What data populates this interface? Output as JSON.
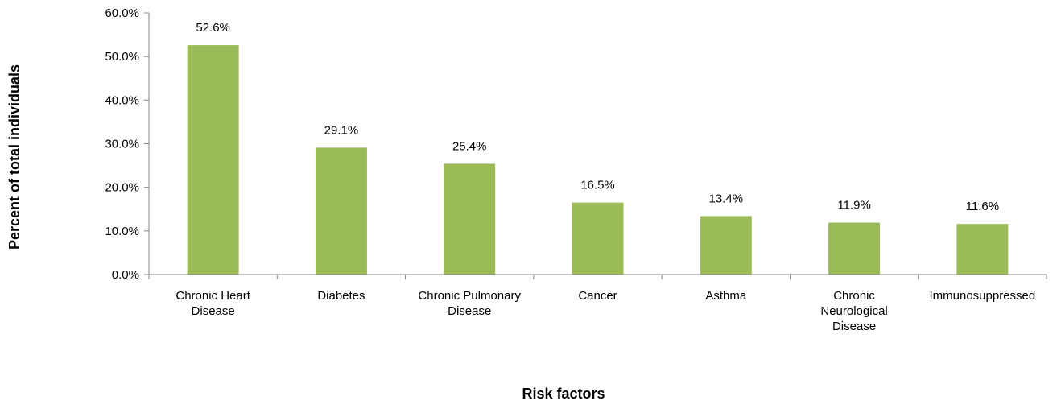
{
  "chart_data": {
    "type": "bar",
    "categories": [
      "Chronic Heart Disease",
      "Diabetes",
      "Chronic Pulmonary Disease",
      "Cancer",
      "Asthma",
      "Chronic Neurological Disease",
      "Immunosuppressed"
    ],
    "category_lines": [
      [
        "Chronic Heart",
        "Disease"
      ],
      [
        "Diabetes"
      ],
      [
        "Chronic Pulmonary",
        "Disease"
      ],
      [
        "Cancer"
      ],
      [
        "Asthma"
      ],
      [
        "Chronic",
        "Neurological",
        "Disease"
      ],
      [
        "Immunosuppressed"
      ]
    ],
    "values": [
      52.6,
      29.1,
      25.4,
      16.5,
      13.4,
      11.9,
      11.6
    ],
    "data_labels": [
      "52.6%",
      "29.1%",
      "25.4%",
      "16.5%",
      "13.4%",
      "11.9%",
      "11.6%"
    ],
    "yticks": [
      0,
      10,
      20,
      30,
      40,
      50,
      60
    ],
    "ytick_labels": [
      "0.0%",
      "10.0%",
      "20.0%",
      "30.0%",
      "40.0%",
      "50.0%",
      "60.0%"
    ],
    "ylim": [
      0,
      60
    ],
    "xlabel": "Risk factors",
    "ylabel": "Percent of total individuals",
    "grid": false,
    "legend": "none",
    "bar_color": "#9BBB59",
    "axis_color": "#868686"
  }
}
